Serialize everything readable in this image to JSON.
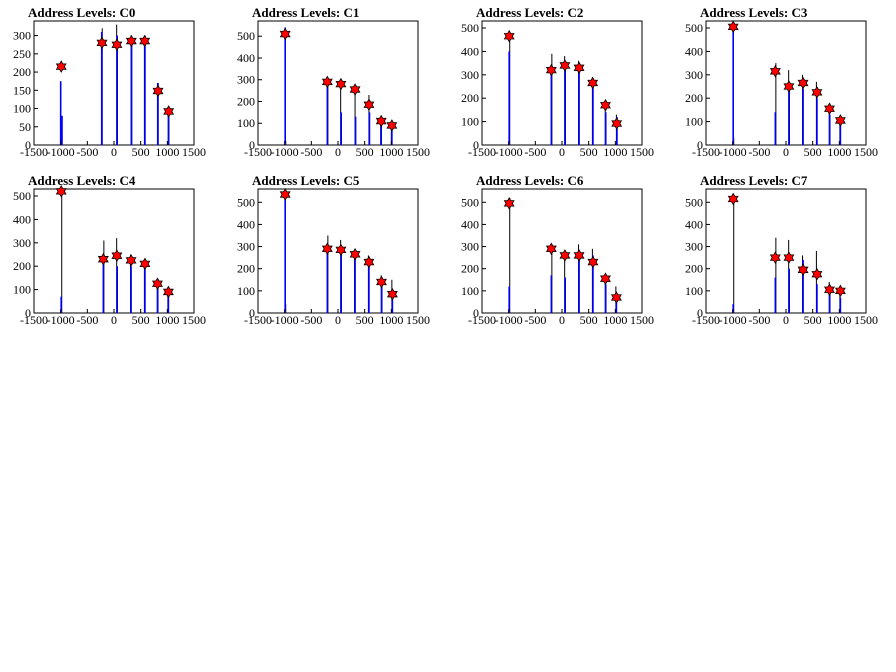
{
  "chart_data": [
    {
      "type": "bar",
      "title": "Address Levels: C0",
      "xlim": [
        -1500,
        1500
      ],
      "ylim": [
        0,
        340
      ],
      "xticks": [
        -1500,
        -1000,
        -500,
        0,
        500,
        1000,
        1500
      ],
      "yticks": [
        0,
        50,
        100,
        150,
        200,
        250,
        300
      ],
      "xtick_labels": [
        "-1500",
        "-1000",
        "-500",
        "0",
        "500",
        "1000",
        "1500"
      ],
      "ytick_labels": [
        "0",
        "50",
        "100",
        "150",
        "200",
        "250",
        "300"
      ],
      "spikes_blue": [
        [
          -1000,
          175
        ],
        [
          -975,
          80
        ],
        [
          -230,
          310
        ],
        [
          60,
          300
        ],
        [
          330,
          290
        ],
        [
          580,
          300
        ],
        [
          820,
          170
        ],
        [
          1020,
          100
        ]
      ],
      "spikes_black": [
        [
          -990,
          50
        ],
        [
          -220,
          320
        ],
        [
          50,
          330
        ],
        [
          320,
          300
        ],
        [
          570,
          300
        ],
        [
          830,
          170
        ],
        [
          1030,
          95
        ]
      ],
      "markers": [
        [
          -990,
          215
        ],
        [
          -225,
          280
        ],
        [
          55,
          275
        ],
        [
          325,
          285
        ],
        [
          575,
          285
        ],
        [
          825,
          148
        ],
        [
          1025,
          92
        ]
      ]
    },
    {
      "type": "bar",
      "title": "Address Levels: C1",
      "xlim": [
        -1500,
        1500
      ],
      "ylim": [
        0,
        570
      ],
      "xticks": [
        -1500,
        -1000,
        -500,
        0,
        500,
        1000,
        1500
      ],
      "yticks": [
        0,
        100,
        200,
        300,
        400,
        500
      ],
      "xtick_labels": [
        "-1500",
        "-1000",
        "-500",
        "0",
        "500",
        "1000",
        "1500"
      ],
      "ytick_labels": [
        "0",
        "100",
        "200",
        "300",
        "400",
        "500"
      ],
      "spikes_blue": [
        [
          -990,
          540
        ],
        [
          -200,
          280
        ],
        [
          60,
          150
        ],
        [
          330,
          130
        ],
        [
          590,
          150
        ],
        [
          810,
          100
        ],
        [
          1010,
          80
        ]
      ],
      "spikes_black": [
        [
          -980,
          20
        ],
        [
          -190,
          300
        ],
        [
          50,
          280
        ],
        [
          320,
          260
        ],
        [
          580,
          230
        ],
        [
          800,
          130
        ],
        [
          1000,
          100
        ]
      ],
      "markers": [
        [
          -990,
          510
        ],
        [
          -200,
          290
        ],
        [
          55,
          280
        ],
        [
          320,
          255
        ],
        [
          580,
          185
        ],
        [
          810,
          110
        ],
        [
          1010,
          90
        ]
      ]
    },
    {
      "type": "bar",
      "title": "Address Levels: C2",
      "xlim": [
        -1500,
        1500
      ],
      "ylim": [
        0,
        530
      ],
      "xticks": [
        -1500,
        -1000,
        -500,
        0,
        500,
        1000,
        1500
      ],
      "yticks": [
        0,
        100,
        200,
        300,
        400,
        500
      ],
      "xtick_labels": [
        "-1500",
        "-1000",
        "-500",
        "0",
        "500",
        "1000",
        "1500"
      ],
      "ytick_labels": [
        "0",
        "100",
        "200",
        "300",
        "400",
        "500"
      ],
      "spikes_blue": [
        [
          -990,
          400
        ],
        [
          -200,
          330
        ],
        [
          60,
          340
        ],
        [
          320,
          330
        ],
        [
          580,
          270
        ],
        [
          820,
          140
        ],
        [
          1030,
          120
        ]
      ],
      "spikes_black": [
        [
          -980,
          480
        ],
        [
          -190,
          390
        ],
        [
          50,
          380
        ],
        [
          310,
          360
        ],
        [
          570,
          290
        ],
        [
          810,
          180
        ],
        [
          1020,
          130
        ]
      ],
      "markers": [
        [
          -990,
          465
        ],
        [
          -200,
          320
        ],
        [
          55,
          340
        ],
        [
          320,
          330
        ],
        [
          575,
          265
        ],
        [
          815,
          170
        ],
        [
          1025,
          92
        ]
      ]
    },
    {
      "type": "bar",
      "title": "Address Levels: C3",
      "xlim": [
        -1500,
        1500
      ],
      "ylim": [
        0,
        530
      ],
      "xticks": [
        -1500,
        -1000,
        -500,
        0,
        500,
        1000,
        1500
      ],
      "yticks": [
        0,
        100,
        200,
        300,
        400,
        500
      ],
      "xtick_labels": [
        "-1500",
        "-1000",
        "-500",
        "0",
        "500",
        "1000",
        "1500"
      ],
      "ytick_labels": [
        "0",
        "100",
        "200",
        "300",
        "400",
        "500"
      ],
      "spikes_blue": [
        [
          -990,
          500
        ],
        [
          -200,
          140
        ],
        [
          60,
          250
        ],
        [
          320,
          240
        ],
        [
          580,
          200
        ],
        [
          820,
          130
        ],
        [
          1020,
          90
        ]
      ],
      "spikes_black": [
        [
          -980,
          30
        ],
        [
          -190,
          350
        ],
        [
          50,
          320
        ],
        [
          310,
          300
        ],
        [
          570,
          270
        ],
        [
          810,
          170
        ],
        [
          1010,
          110
        ]
      ],
      "markers": [
        [
          -990,
          505
        ],
        [
          -200,
          315
        ],
        [
          55,
          250
        ],
        [
          320,
          265
        ],
        [
          580,
          225
        ],
        [
          815,
          155
        ],
        [
          1020,
          105
        ]
      ]
    },
    {
      "type": "bar",
      "title": "Address Levels: C4",
      "xlim": [
        -1500,
        1500
      ],
      "ylim": [
        0,
        530
      ],
      "xticks": [
        -1500,
        -1000,
        -500,
        0,
        500,
        1000,
        1500
      ],
      "yticks": [
        0,
        100,
        200,
        300,
        400,
        500
      ],
      "xtick_labels": [
        "-1500",
        "-1000",
        "-500",
        "0",
        "500",
        "1000",
        "1500"
      ],
      "ytick_labels": [
        "0",
        "100",
        "200",
        "300",
        "400",
        "500"
      ],
      "spikes_blue": [
        [
          -990,
          70
        ],
        [
          -200,
          240
        ],
        [
          60,
          200
        ],
        [
          320,
          200
        ],
        [
          580,
          200
        ],
        [
          820,
          110
        ],
        [
          1020,
          80
        ]
      ],
      "spikes_black": [
        [
          -980,
          540
        ],
        [
          -190,
          310
        ],
        [
          50,
          320
        ],
        [
          310,
          250
        ],
        [
          570,
          220
        ],
        [
          810,
          140
        ],
        [
          1010,
          100
        ]
      ],
      "markers": [
        [
          -990,
          520
        ],
        [
          -200,
          230
        ],
        [
          55,
          245
        ],
        [
          320,
          225
        ],
        [
          580,
          210
        ],
        [
          815,
          125
        ],
        [
          1020,
          90
        ]
      ]
    },
    {
      "type": "bar",
      "title": "Address Levels: C5",
      "xlim": [
        -1500,
        1500
      ],
      "ylim": [
        0,
        560
      ],
      "xticks": [
        -1500,
        -1000,
        -500,
        0,
        500,
        1000,
        1500
      ],
      "yticks": [
        0,
        100,
        200,
        300,
        400,
        500
      ],
      "xtick_labels": [
        "-1500",
        "-1000",
        "-500",
        "0",
        "500",
        "1000",
        "1500"
      ],
      "ytick_labels": [
        "0",
        "100",
        "200",
        "300",
        "400",
        "500"
      ],
      "spikes_blue": [
        [
          -990,
          540
        ],
        [
          -200,
          300
        ],
        [
          60,
          300
        ],
        [
          320,
          270
        ],
        [
          580,
          240
        ],
        [
          820,
          150
        ],
        [
          1020,
          90
        ]
      ],
      "spikes_black": [
        [
          -980,
          40
        ],
        [
          -190,
          350
        ],
        [
          50,
          330
        ],
        [
          310,
          280
        ],
        [
          570,
          260
        ],
        [
          810,
          170
        ],
        [
          1010,
          150
        ]
      ],
      "markers": [
        [
          -990,
          535
        ],
        [
          -200,
          290
        ],
        [
          55,
          285
        ],
        [
          320,
          265
        ],
        [
          580,
          230
        ],
        [
          815,
          140
        ],
        [
          1020,
          85
        ]
      ]
    },
    {
      "type": "bar",
      "title": "Address Levels: C6",
      "xlim": [
        -1500,
        1500
      ],
      "ylim": [
        0,
        560
      ],
      "xticks": [
        -1500,
        -1000,
        -500,
        0,
        500,
        1000,
        1500
      ],
      "yticks": [
        0,
        100,
        200,
        300,
        400,
        500
      ],
      "xtick_labels": [
        "-1500",
        "-1000",
        "-500",
        "0",
        "500",
        "1000",
        "1500"
      ],
      "ytick_labels": [
        "0",
        "100",
        "200",
        "300",
        "400",
        "500"
      ],
      "spikes_blue": [
        [
          -990,
          120
        ],
        [
          -200,
          170
        ],
        [
          60,
          160
        ],
        [
          320,
          250
        ],
        [
          580,
          260
        ],
        [
          820,
          130
        ],
        [
          1020,
          60
        ]
      ],
      "spikes_black": [
        [
          -980,
          520
        ],
        [
          -190,
          300
        ],
        [
          50,
          280
        ],
        [
          310,
          310
        ],
        [
          570,
          290
        ],
        [
          810,
          170
        ],
        [
          1010,
          120
        ]
      ],
      "markers": [
        [
          -990,
          495
        ],
        [
          -200,
          290
        ],
        [
          55,
          260
        ],
        [
          320,
          260
        ],
        [
          580,
          230
        ],
        [
          815,
          155
        ],
        [
          1020,
          70
        ]
      ]
    },
    {
      "type": "bar",
      "title": "Address Levels: C7",
      "xlim": [
        -1500,
        1500
      ],
      "ylim": [
        0,
        560
      ],
      "xticks": [
        -1500,
        -1000,
        -500,
        0,
        500,
        1000,
        1500
      ],
      "yticks": [
        0,
        100,
        200,
        300,
        400,
        500
      ],
      "xtick_labels": [
        "-1500",
        "-1000",
        "-500",
        "0",
        "500",
        "1000",
        "1500"
      ],
      "ytick_labels": [
        "0",
        "100",
        "200",
        "300",
        "400",
        "500"
      ],
      "spikes_blue": [
        [
          -990,
          40
        ],
        [
          -200,
          160
        ],
        [
          60,
          200
        ],
        [
          320,
          240
        ],
        [
          580,
          130
        ],
        [
          820,
          90
        ],
        [
          1020,
          70
        ]
      ],
      "spikes_black": [
        [
          -980,
          530
        ],
        [
          -190,
          340
        ],
        [
          50,
          330
        ],
        [
          310,
          260
        ],
        [
          570,
          280
        ],
        [
          810,
          140
        ],
        [
          1010,
          110
        ]
      ],
      "markers": [
        [
          -990,
          515
        ],
        [
          -200,
          250
        ],
        [
          55,
          250
        ],
        [
          320,
          195
        ],
        [
          580,
          175
        ],
        [
          815,
          105
        ],
        [
          1020,
          100
        ]
      ]
    }
  ],
  "colors": {
    "spike_blue": "#0000ff",
    "spike_black": "#000000",
    "marker_fill": "#ff0000",
    "marker_stroke": "#000000"
  }
}
